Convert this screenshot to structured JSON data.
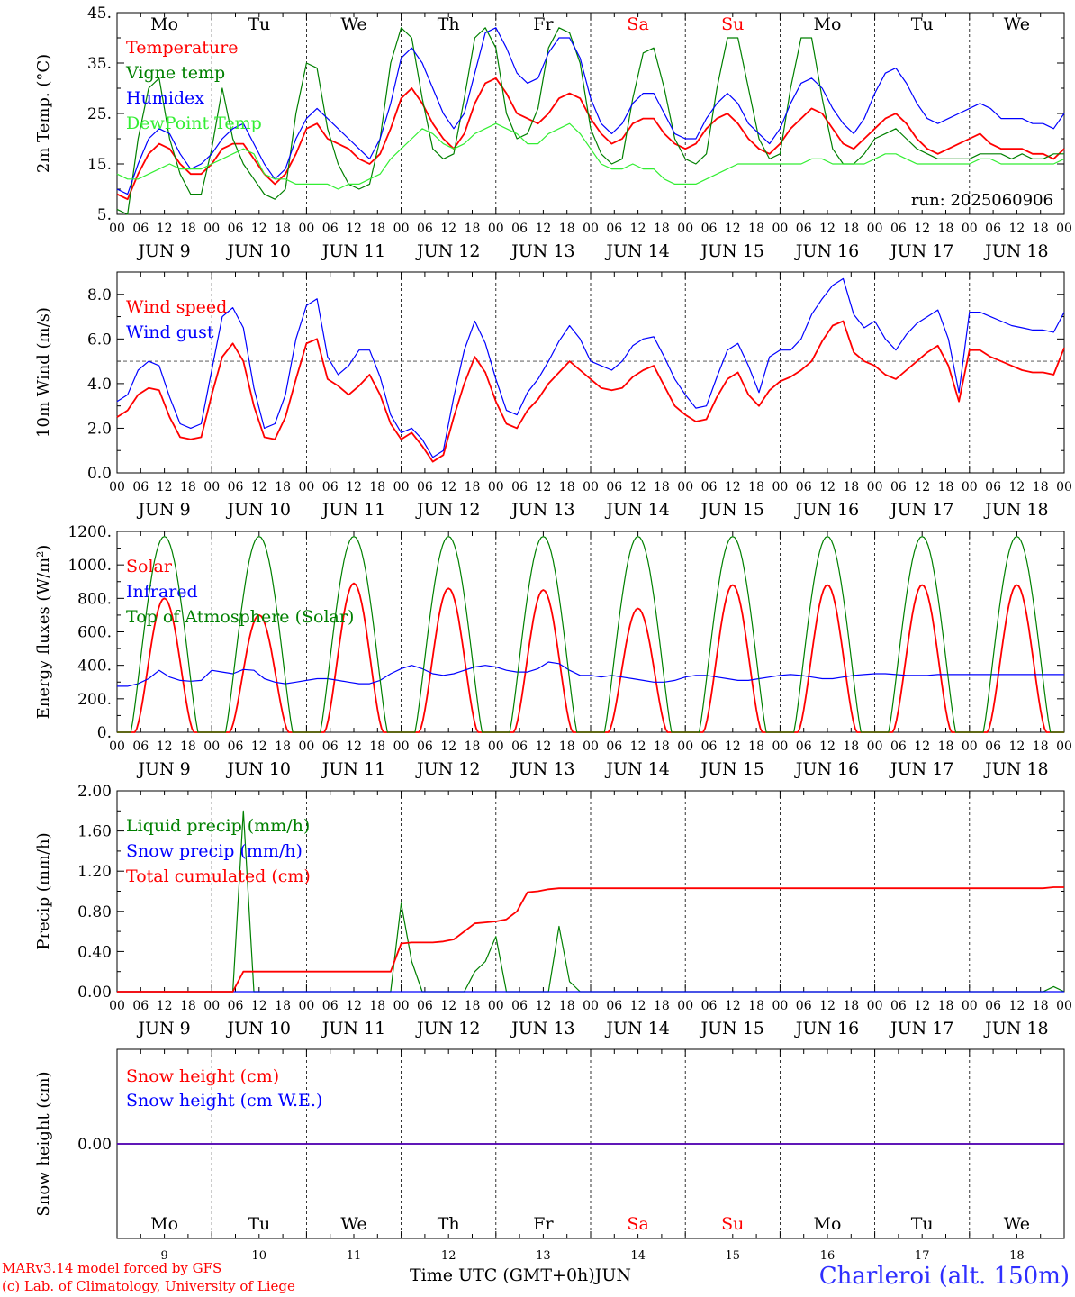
{
  "days": [
    {
      "dow": "Mo",
      "date": "JUN  9",
      "num": "9",
      "weekend": false
    },
    {
      "dow": "Tu",
      "date": "JUN 10",
      "num": "10",
      "weekend": false
    },
    {
      "dow": "We",
      "date": "JUN 11",
      "num": "11",
      "weekend": false
    },
    {
      "dow": "Th",
      "date": "JUN 12",
      "num": "12",
      "weekend": false
    },
    {
      "dow": "Fr",
      "date": "JUN 13",
      "num": "13",
      "weekend": false
    },
    {
      "dow": "Sa",
      "date": "JUN 14",
      "num": "14",
      "weekend": true
    },
    {
      "dow": "Su",
      "date": "JUN 15",
      "num": "15",
      "weekend": true
    },
    {
      "dow": "Mo",
      "date": "JUN 16",
      "num": "16",
      "weekend": false
    },
    {
      "dow": "Tu",
      "date": "JUN 17",
      "num": "17",
      "weekend": false
    },
    {
      "dow": "We",
      "date": "JUN 18",
      "num": "18",
      "weekend": false
    }
  ],
  "hour_ticks": [
    "00",
    "06",
    "12",
    "18"
  ],
  "colors": {
    "red": "#ff0000",
    "green": "#008000",
    "blue": "#0000ff",
    "lightgreen": "#33ee33",
    "station": "#2f2fff"
  },
  "footer": {
    "credit_1": "MARv3.14 model forced by GFS",
    "credit_2": "(c) Lab. of Climatology, University of Liege",
    "x_title": "Time UTC (GMT+0h)",
    "month": "JUN",
    "station": "Charleroi (alt. 150m)"
  },
  "chart_data": [
    {
      "type": "line",
      "ylabel": "2m Temp. (°C)",
      "ylim": [
        5,
        45
      ],
      "yticks": [
        "5.",
        "15.",
        "25.",
        "35.",
        "45."
      ],
      "yticks_val": [
        5,
        15,
        25,
        35,
        45
      ],
      "annotation": "run: 2025060906",
      "x_hours_step": 6,
      "series": [
        {
          "name": "Temperature",
          "color": "red",
          "values": [
            9,
            8,
            13,
            17,
            19,
            18,
            15,
            13,
            13,
            15,
            18,
            19,
            19,
            16,
            13,
            11,
            13,
            17,
            22,
            23,
            20,
            19,
            18,
            16,
            15,
            17,
            22,
            28,
            30,
            27,
            23,
            20,
            18,
            21,
            27,
            31,
            32,
            29,
            25,
            24,
            23,
            25,
            28,
            29,
            28,
            24,
            21,
            19,
            20,
            23,
            24,
            24,
            21,
            19,
            18,
            19,
            22,
            24,
            25,
            23,
            20,
            18,
            17,
            19,
            22,
            24,
            26,
            25,
            22,
            19,
            18,
            20,
            22,
            24,
            25,
            23,
            20,
            18,
            17,
            18,
            19,
            20,
            21,
            19,
            18,
            18,
            18,
            17,
            17,
            16,
            18
          ]
        },
        {
          "name": "Vigne temp",
          "color": "green",
          "values": [
            6,
            5,
            20,
            30,
            32,
            20,
            13,
            9,
            9,
            18,
            30,
            20,
            15,
            12,
            9,
            8,
            10,
            25,
            35,
            34,
            22,
            15,
            11,
            10,
            11,
            20,
            35,
            42,
            40,
            28,
            18,
            16,
            17,
            28,
            40,
            42,
            38,
            25,
            20,
            21,
            26,
            38,
            42,
            41,
            35,
            22,
            17,
            15,
            16,
            28,
            37,
            38,
            30,
            20,
            16,
            15,
            17,
            30,
            40,
            40,
            30,
            20,
            16,
            17,
            30,
            40,
            40,
            28,
            18,
            15,
            15,
            17,
            20,
            21,
            22,
            20,
            18,
            17,
            16,
            16,
            16,
            16,
            17,
            17,
            17,
            16,
            17,
            16,
            16,
            17,
            17
          ]
        },
        {
          "name": "Humidex",
          "color": "blue",
          "values": [
            10,
            9,
            15,
            20,
            22,
            21,
            17,
            14,
            15,
            17,
            20,
            22,
            23,
            19,
            15,
            12,
            14,
            20,
            24,
            26,
            24,
            22,
            20,
            18,
            16,
            20,
            27,
            36,
            38,
            35,
            30,
            25,
            22,
            25,
            33,
            41,
            42,
            38,
            33,
            31,
            32,
            37,
            40,
            40,
            36,
            28,
            23,
            21,
            23,
            27,
            29,
            29,
            25,
            21,
            20,
            20,
            24,
            27,
            29,
            27,
            23,
            21,
            19,
            22,
            27,
            31,
            32,
            30,
            26,
            23,
            21,
            24,
            29,
            33,
            34,
            31,
            27,
            24,
            23,
            24,
            25,
            26,
            27,
            26,
            24,
            24,
            24,
            23,
            23,
            22,
            25
          ]
        },
        {
          "name": "DewPoint Temp",
          "color": "lightgreen",
          "values": [
            13,
            12,
            12,
            13,
            14,
            15,
            14,
            14,
            14,
            15,
            16,
            17,
            18,
            17,
            13,
            12,
            12,
            11,
            11,
            11,
            11,
            10,
            11,
            11,
            12,
            13,
            16,
            18,
            20,
            22,
            21,
            19,
            18,
            19,
            21,
            22,
            23,
            22,
            21,
            19,
            19,
            21,
            22,
            23,
            21,
            18,
            15,
            14,
            14,
            15,
            14,
            14,
            12,
            11,
            11,
            11,
            12,
            13,
            14,
            15,
            15,
            15,
            15,
            15,
            15,
            15,
            16,
            16,
            15,
            15,
            15,
            15,
            16,
            17,
            17,
            16,
            15,
            15,
            15,
            15,
            15,
            15,
            16,
            16,
            15,
            15,
            15,
            15,
            15,
            15,
            16
          ]
        }
      ]
    },
    {
      "type": "line",
      "ylabel": "10m Wind (m/s)",
      "ylim": [
        0,
        9
      ],
      "yticks": [
        "0.0",
        "2.0",
        "4.0",
        "6.0",
        "8.0"
      ],
      "yticks_val": [
        0,
        2,
        4,
        6,
        8
      ],
      "reference_line": 5,
      "x_hours_step": 6,
      "series": [
        {
          "name": "Wind speed",
          "color": "red",
          "values": [
            2.5,
            2.8,
            3.5,
            3.8,
            3.7,
            2.5,
            1.6,
            1.5,
            1.6,
            3.5,
            5.2,
            5.8,
            5.0,
            3.0,
            1.6,
            1.5,
            2.5,
            4.2,
            5.8,
            6.0,
            4.2,
            3.9,
            3.5,
            3.9,
            4.4,
            3.5,
            2.2,
            1.5,
            1.8,
            1.2,
            0.5,
            0.8,
            2.5,
            4.0,
            5.2,
            4.5,
            3.2,
            2.2,
            2.0,
            2.8,
            3.3,
            4.0,
            4.5,
            5.0,
            4.6,
            4.2,
            3.8,
            3.7,
            3.8,
            4.3,
            4.6,
            4.8,
            3.9,
            3.0,
            2.6,
            2.3,
            2.4,
            3.4,
            4.2,
            4.5,
            3.5,
            3.0,
            3.7,
            4.1,
            4.3,
            4.6,
            5.0,
            5.9,
            6.6,
            6.8,
            5.4,
            5.0,
            4.8,
            4.4,
            4.2,
            4.6,
            5.0,
            5.4,
            5.7,
            4.8,
            3.2,
            5.5,
            5.5,
            5.2,
            5.0,
            4.8,
            4.6,
            4.5,
            4.5,
            4.4,
            5.6
          ]
        },
        {
          "name": "Wind gust",
          "color": "blue",
          "values": [
            3.2,
            3.5,
            4.6,
            5.0,
            4.8,
            3.4,
            2.2,
            2.0,
            2.2,
            4.6,
            7.0,
            7.4,
            6.5,
            3.8,
            2.0,
            2.2,
            3.5,
            6.0,
            7.5,
            7.8,
            5.2,
            4.4,
            4.8,
            5.5,
            5.5,
            4.3,
            2.6,
            1.8,
            2.0,
            1.5,
            0.7,
            1.0,
            3.4,
            5.5,
            6.8,
            5.8,
            4.2,
            2.8,
            2.6,
            3.6,
            4.2,
            5.0,
            5.9,
            6.6,
            6.0,
            5.0,
            4.8,
            4.6,
            5.0,
            5.7,
            6.0,
            6.1,
            5.2,
            4.2,
            3.5,
            2.9,
            3.0,
            4.3,
            5.5,
            5.8,
            4.8,
            3.6,
            5.2,
            5.5,
            5.5,
            6.0,
            7.1,
            7.8,
            8.4,
            8.7,
            7.1,
            6.5,
            6.8,
            6.0,
            5.5,
            6.2,
            6.7,
            7.0,
            7.3,
            6.0,
            3.6,
            7.2,
            7.2,
            7.0,
            6.8,
            6.6,
            6.5,
            6.4,
            6.4,
            6.3,
            7.2
          ]
        }
      ]
    },
    {
      "type": "line",
      "ylabel": "Energy fluxes (W/m²)",
      "ylim": [
        0,
        1200
      ],
      "yticks": [
        "0.",
        "200.",
        "400.",
        "600.",
        "800.",
        "1000.",
        "1200."
      ],
      "yticks_val": [
        0,
        200,
        400,
        600,
        800,
        1000,
        1200
      ],
      "x_hours_step": 6,
      "series": [
        {
          "name": "Solar",
          "color": "red",
          "daily_peaks": [
            800,
            700,
            890,
            860,
            850,
            740,
            880,
            880,
            880,
            880
          ]
        },
        {
          "name": "Infrared",
          "color": "blue",
          "values": [
            275,
            275,
            290,
            320,
            370,
            330,
            310,
            305,
            310,
            370,
            360,
            350,
            375,
            370,
            320,
            300,
            290,
            300,
            310,
            320,
            320,
            310,
            300,
            290,
            290,
            310,
            350,
            380,
            400,
            380,
            350,
            340,
            350,
            370,
            390,
            400,
            390,
            370,
            360,
            360,
            380,
            420,
            410,
            370,
            340,
            340,
            330,
            340,
            330,
            320,
            310,
            300,
            300,
            310,
            330,
            340,
            340,
            330,
            320,
            310,
            310,
            320,
            330,
            340,
            345,
            340,
            330,
            320,
            320,
            330,
            340,
            345,
            350,
            350,
            345,
            340,
            340,
            340,
            345,
            345,
            345,
            345,
            345,
            345,
            345,
            345,
            345,
            345,
            345,
            345,
            345
          ]
        },
        {
          "name": "Top of Atmosphere (Solar)",
          "color": "green",
          "daily_peak": 1170
        }
      ]
    },
    {
      "type": "line",
      "ylabel": "Precip (mm/h)",
      "ylim": [
        0,
        2
      ],
      "yticks": [
        "0.00",
        "0.40",
        "0.80",
        "1.20",
        "1.60",
        "2.00"
      ],
      "yticks_val": [
        0,
        0.4,
        0.8,
        1.2,
        1.6,
        2.0
      ],
      "x_hours_step": 6,
      "series": [
        {
          "name": "Liquid precip (mm/h)",
          "color": "green",
          "values": [
            0,
            0,
            0,
            0,
            0,
            0,
            0,
            0,
            0,
            0,
            0,
            0,
            1.8,
            0,
            0,
            0,
            0,
            0,
            0,
            0,
            0,
            0,
            0,
            0,
            0,
            0,
            0,
            0.88,
            0.3,
            0,
            0,
            0,
            0,
            0,
            0.2,
            0.3,
            0.55,
            0,
            0,
            0,
            0,
            0,
            0.65,
            0.1,
            0,
            0,
            0,
            0,
            0,
            0,
            0,
            0,
            0,
            0,
            0,
            0,
            0,
            0,
            0,
            0,
            0,
            0,
            0,
            0,
            0,
            0,
            0,
            0,
            0,
            0,
            0,
            0,
            0,
            0,
            0,
            0,
            0,
            0,
            0,
            0,
            0,
            0,
            0,
            0,
            0,
            0,
            0,
            0,
            0,
            0.05,
            0
          ]
        },
        {
          "name": "Snow precip (mm/h)",
          "color": "blue",
          "values": [
            0
          ]
        },
        {
          "name": "Total cumulated (cm)",
          "color": "red",
          "values": [
            0,
            0,
            0,
            0,
            0,
            0,
            0,
            0,
            0,
            0,
            0,
            0,
            0.2,
            0.2,
            0.2,
            0.2,
            0.2,
            0.2,
            0.2,
            0.2,
            0.2,
            0.2,
            0.2,
            0.2,
            0.2,
            0.2,
            0.2,
            0.48,
            0.49,
            0.49,
            0.49,
            0.5,
            0.52,
            0.6,
            0.68,
            0.69,
            0.7,
            0.72,
            0.8,
            0.99,
            1.0,
            1.02,
            1.03,
            1.03,
            1.03,
            1.03,
            1.03,
            1.03,
            1.03,
            1.03,
            1.03,
            1.03,
            1.03,
            1.03,
            1.03,
            1.03,
            1.03,
            1.03,
            1.03,
            1.03,
            1.03,
            1.03,
            1.03,
            1.03,
            1.03,
            1.03,
            1.03,
            1.03,
            1.03,
            1.03,
            1.03,
            1.03,
            1.03,
            1.03,
            1.03,
            1.03,
            1.03,
            1.03,
            1.03,
            1.03,
            1.03,
            1.03,
            1.03,
            1.03,
            1.03,
            1.03,
            1.03,
            1.03,
            1.03,
            1.04,
            1.04
          ]
        }
      ]
    },
    {
      "type": "line",
      "ylabel": "Snow height (cm)",
      "yticks": [
        "0.00"
      ],
      "yticks_val": [
        0
      ],
      "ylim": [
        -1,
        1
      ],
      "x_hours_step": 6,
      "series": [
        {
          "name": "Snow height (cm)",
          "color": "red",
          "values": [
            0,
            0
          ]
        },
        {
          "name": "Snow height (cm W.E.)",
          "color": "blue",
          "values": [
            0,
            0
          ]
        }
      ]
    }
  ]
}
